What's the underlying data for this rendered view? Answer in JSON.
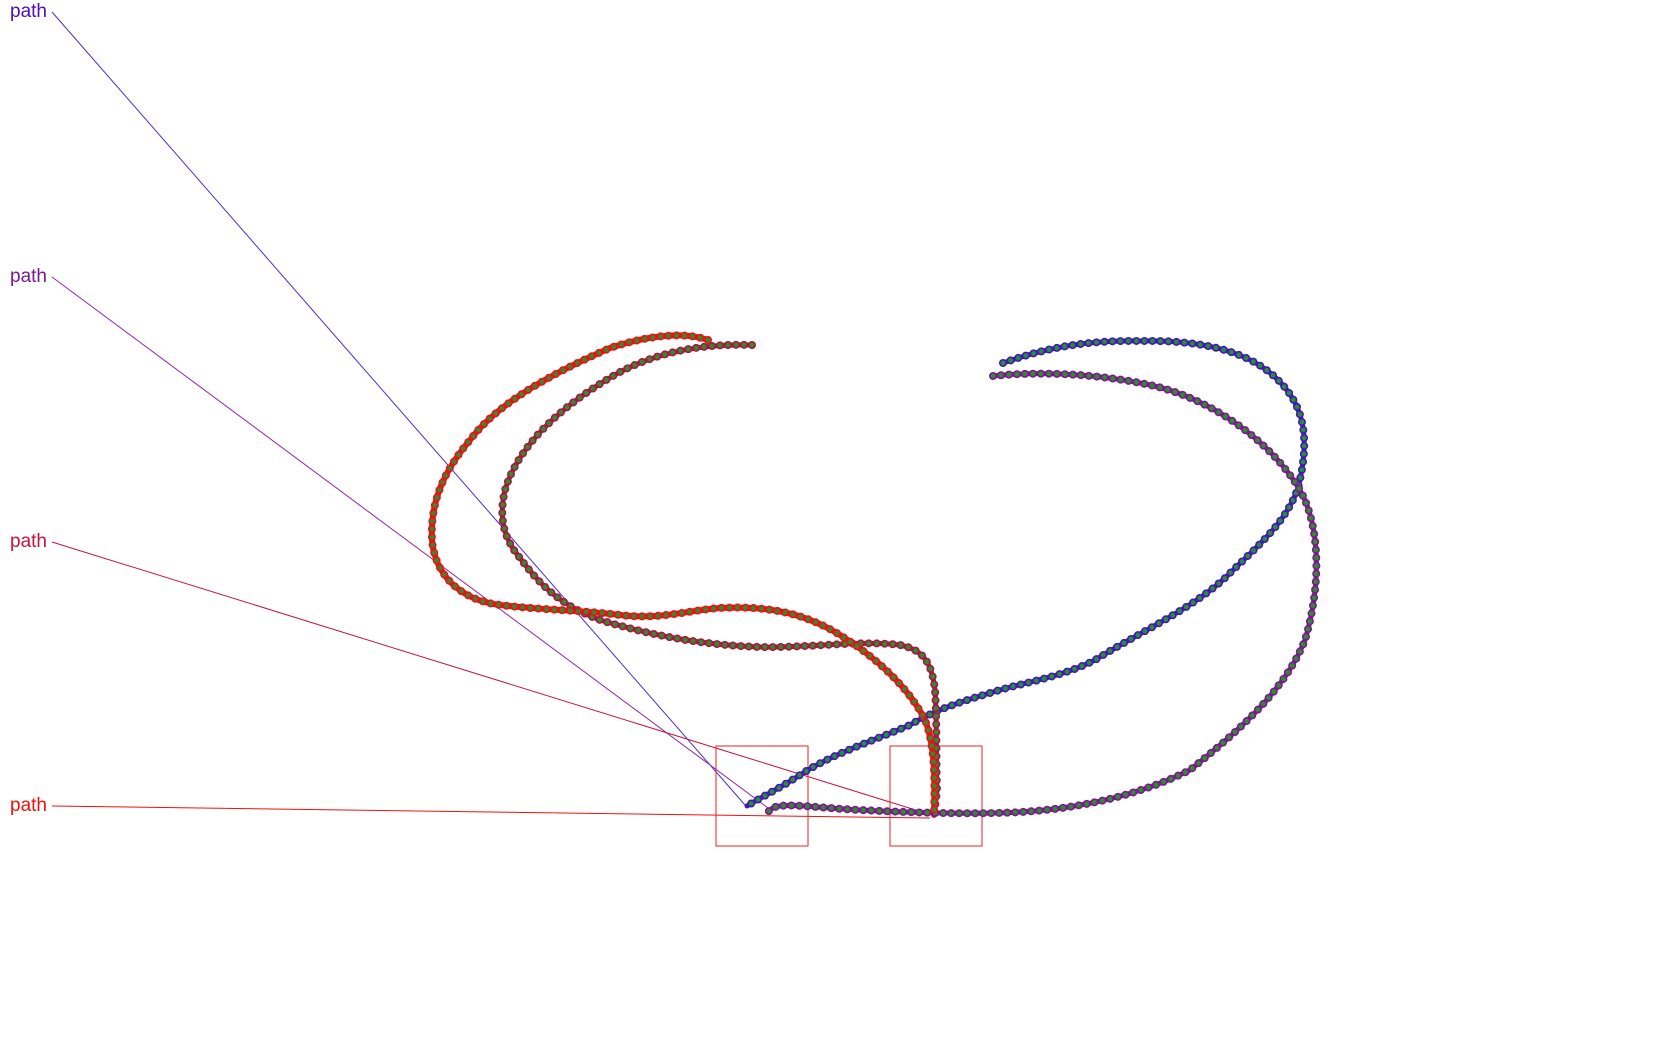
{
  "labels": [
    {
      "text": "path",
      "color": "#4b0fb4"
    },
    {
      "text": "path",
      "color": "#7a1a8e"
    },
    {
      "text": "path",
      "color": "#c4133e"
    },
    {
      "text": "path",
      "color": "#ee1111"
    }
  ],
  "colors": {
    "blue": "#3c1cb8",
    "purple": "#7a1a8e",
    "crimson": "#a8183e",
    "red": "#ee1111",
    "node_fill": "#2e8b2e",
    "box": "#ee1111"
  }
}
